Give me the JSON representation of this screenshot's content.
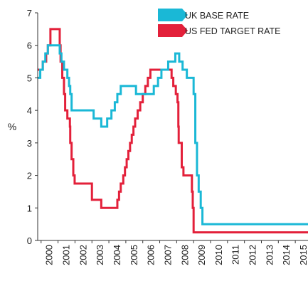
{
  "chart_data": {
    "type": "line",
    "title": "",
    "xlabel": "",
    "ylabel": "%",
    "ylim": [
      0,
      7
    ],
    "xlim": [
      1999.8,
      2015.75
    ],
    "y_ticks": [
      "0",
      "1",
      "2",
      "3",
      "4",
      "5",
      "6",
      "7"
    ],
    "x_ticks": [
      "2000",
      "2001",
      "2002",
      "2003",
      "2004",
      "2005",
      "2006",
      "2007",
      "2008",
      "2009",
      "2010",
      "2011",
      "2012",
      "2013",
      "2014",
      "2015"
    ],
    "grid": false,
    "legend_position": "top-right",
    "step": true,
    "series": [
      {
        "name": "UK BASE RATE",
        "color": "#1ab8d6",
        "points": [
          [
            1999.8,
            5.0
          ],
          [
            1999.95,
            5.25
          ],
          [
            2000.1,
            5.5
          ],
          [
            2000.25,
            5.75
          ],
          [
            2000.4,
            6.0
          ],
          [
            2001.1,
            5.75
          ],
          [
            2001.2,
            5.5
          ],
          [
            2001.35,
            5.25
          ],
          [
            2001.55,
            5.0
          ],
          [
            2001.65,
            4.75
          ],
          [
            2001.72,
            4.5
          ],
          [
            2001.8,
            4.0
          ],
          [
            2003.1,
            3.75
          ],
          [
            2003.55,
            3.5
          ],
          [
            2003.9,
            3.75
          ],
          [
            2004.15,
            4.0
          ],
          [
            2004.35,
            4.25
          ],
          [
            2004.5,
            4.5
          ],
          [
            2004.7,
            4.75
          ],
          [
            2005.6,
            4.5
          ],
          [
            2006.65,
            4.75
          ],
          [
            2006.9,
            5.0
          ],
          [
            2007.1,
            5.25
          ],
          [
            2007.5,
            5.5
          ],
          [
            2007.92,
            5.75
          ],
          [
            2008.15,
            5.5
          ],
          [
            2008.35,
            5.25
          ],
          [
            2008.6,
            5.0
          ],
          [
            2009.0,
            4.5
          ],
          [
            2009.1,
            3.0
          ],
          [
            2009.2,
            2.0
          ],
          [
            2009.3,
            1.5
          ],
          [
            2009.42,
            1.0
          ],
          [
            2009.52,
            0.5
          ],
          [
            2015.75,
            0.5
          ]
        ]
      },
      {
        "name": "US FED TARGET RATE",
        "color": "#e3203a",
        "points": [
          [
            1999.8,
            5.25
          ],
          [
            2000.1,
            5.5
          ],
          [
            2000.3,
            5.75
          ],
          [
            2000.4,
            6.0
          ],
          [
            2000.55,
            6.5
          ],
          [
            2001.1,
            6.0
          ],
          [
            2001.15,
            5.5
          ],
          [
            2001.25,
            5.0
          ],
          [
            2001.35,
            4.5
          ],
          [
            2001.42,
            4.0
          ],
          [
            2001.55,
            3.75
          ],
          [
            2001.7,
            3.5
          ],
          [
            2001.72,
            3.0
          ],
          [
            2001.8,
            2.5
          ],
          [
            2001.9,
            2.0
          ],
          [
            2001.98,
            1.75
          ],
          [
            2003.0,
            1.25
          ],
          [
            2003.55,
            1.0
          ],
          [
            2004.5,
            1.25
          ],
          [
            2004.6,
            1.5
          ],
          [
            2004.7,
            1.75
          ],
          [
            2004.85,
            2.0
          ],
          [
            2004.95,
            2.25
          ],
          [
            2005.05,
            2.5
          ],
          [
            2005.15,
            2.75
          ],
          [
            2005.25,
            3.0
          ],
          [
            2005.35,
            3.25
          ],
          [
            2005.45,
            3.5
          ],
          [
            2005.55,
            3.75
          ],
          [
            2005.7,
            4.0
          ],
          [
            2005.85,
            4.25
          ],
          [
            2006.0,
            4.5
          ],
          [
            2006.15,
            4.75
          ],
          [
            2006.3,
            5.0
          ],
          [
            2006.45,
            5.25
          ],
          [
            2007.7,
            5.0
          ],
          [
            2007.8,
            4.75
          ],
          [
            2007.95,
            4.5
          ],
          [
            2008.05,
            4.25
          ],
          [
            2008.1,
            3.5
          ],
          [
            2008.12,
            3.0
          ],
          [
            2008.3,
            2.25
          ],
          [
            2008.4,
            2.0
          ],
          [
            2008.9,
            1.5
          ],
          [
            2008.95,
            1.0
          ],
          [
            2009.0,
            0.25
          ],
          [
            2015.75,
            0.25
          ]
        ]
      }
    ]
  }
}
